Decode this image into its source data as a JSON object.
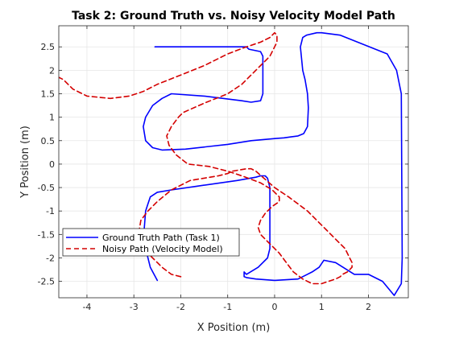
{
  "chart_data": {
    "type": "line",
    "title": "Task 2: Ground Truth vs. Noisy Velocity Model Path",
    "xlabel": "X Position (m)",
    "ylabel": "Y Position (m)",
    "xlim": [
      -4.6,
      2.85
    ],
    "ylim": [
      -2.85,
      2.95
    ],
    "xticks": [
      -4,
      -3,
      -2,
      -1,
      0,
      1,
      2
    ],
    "yticks": [
      -2.5,
      -2,
      -1.5,
      -1,
      -0.5,
      0,
      0.5,
      1,
      1.5,
      2,
      2.5
    ],
    "xtick_labels": [
      "-4",
      "-3",
      "-2",
      "-1",
      "0",
      "1",
      "2"
    ],
    "ytick_labels": [
      "-2.5",
      "-2",
      "-1.5",
      "-1",
      "-0.5",
      "0",
      "0.5",
      "1",
      "1.5",
      "2",
      "2.5"
    ],
    "grid": true,
    "legend_position": "bottom-left",
    "series": [
      {
        "name": "Ground Truth Path (Task 1)",
        "color": "#0000ff",
        "style": "solid",
        "x": [
          -2.5,
          -2.65,
          -2.75,
          -2.78,
          -2.75,
          -2.7,
          -2.65,
          -2.5,
          -2.2,
          -1.5,
          -0.8,
          -0.4,
          -0.3,
          -0.2,
          -0.15,
          -0.1,
          -0.1,
          -0.15,
          -0.35,
          -0.6,
          -0.65,
          -0.65,
          -0.6,
          -0.4,
          0.0,
          0.5,
          0.8,
          0.95,
          1.05,
          1.3,
          1.7,
          2.0,
          2.3,
          2.55,
          2.7,
          2.72,
          2.7,
          2.6,
          2.4,
          1.4,
          1.0,
          0.9,
          0.68,
          0.6,
          0.55,
          0.6,
          0.65,
          0.7,
          0.72,
          0.7,
          0.62,
          0.5,
          0.35,
          0.2,
          0.05,
          -0.5,
          -1.0,
          -1.9,
          -2.4,
          -2.6,
          -2.75,
          -2.8,
          -2.75,
          -2.6,
          -2.4,
          -2.2,
          -1.5,
          -0.7,
          -0.5,
          -0.3,
          -0.25,
          -0.25,
          -0.3,
          -0.55,
          -0.6,
          -0.6,
          -1.0,
          -1.6,
          -2.0,
          -2.4,
          -2.55
        ],
        "y": [
          -2.48,
          -2.2,
          -1.8,
          -1.4,
          -1.0,
          -0.85,
          -0.7,
          -0.6,
          -0.55,
          -0.45,
          -0.35,
          -0.28,
          -0.25,
          -0.25,
          -0.3,
          -0.5,
          -1.8,
          -2.0,
          -2.2,
          -2.35,
          -2.3,
          -2.4,
          -2.42,
          -2.45,
          -2.48,
          -2.45,
          -2.3,
          -2.2,
          -2.05,
          -2.1,
          -2.35,
          -2.35,
          -2.5,
          -2.8,
          -2.55,
          -2.0,
          1.5,
          2.0,
          2.35,
          2.75,
          2.8,
          2.8,
          2.75,
          2.7,
          2.5,
          2.0,
          1.8,
          1.5,
          1.2,
          0.8,
          0.65,
          0.6,
          0.58,
          0.56,
          0.55,
          0.5,
          0.42,
          0.32,
          0.3,
          0.35,
          0.5,
          0.8,
          1.0,
          1.25,
          1.4,
          1.5,
          1.45,
          1.35,
          1.32,
          1.35,
          1.5,
          2.3,
          2.4,
          2.45,
          2.5,
          2.5,
          2.5,
          2.5,
          2.5,
          2.5,
          2.5
        ]
      },
      {
        "name": "Noisy Path (Velocity Model)",
        "color": "#d40000",
        "style": "dashed",
        "x": [
          -2.0,
          -2.2,
          -2.4,
          -2.6,
          -2.8,
          -2.9,
          -2.85,
          -2.7,
          -2.5,
          -2.2,
          -1.8,
          -1.2,
          -1.0,
          -0.9,
          -0.6,
          -0.5,
          -0.4,
          0.0,
          0.3,
          0.5,
          0.7,
          0.9,
          1.1,
          1.3,
          1.5,
          1.6,
          1.65,
          1.65,
          1.55,
          1.45,
          1.4,
          1.3,
          1.0,
          0.8,
          0.6,
          0.4,
          0.25,
          0.1,
          -0.1,
          -0.3,
          -0.35,
          -0.3,
          -0.2,
          -0.05,
          0.1,
          0.1,
          -0.05,
          -0.3,
          -0.7,
          -1.0,
          -1.4,
          -1.85,
          -2.1,
          -2.25,
          -2.3,
          -2.2,
          -2.05,
          -1.95,
          -1.5,
          -1.0,
          -0.7,
          -0.5,
          -0.3,
          -0.1,
          0.0,
          0.05,
          0.05,
          0.0,
          -0.1,
          -0.3,
          -0.6,
          -1.0,
          -1.5,
          -2.0,
          -2.5,
          -2.8,
          -3.1,
          -3.5,
          -4.0,
          -4.3,
          -4.5,
          -4.6
        ],
        "y": [
          -2.4,
          -2.35,
          -2.2,
          -2.0,
          -1.8,
          -1.5,
          -1.2,
          -1.0,
          -0.8,
          -0.55,
          -0.35,
          -0.25,
          -0.2,
          -0.15,
          -0.1,
          -0.1,
          -0.15,
          -0.5,
          -0.7,
          -0.85,
          -1.0,
          -1.2,
          -1.4,
          -1.6,
          -1.8,
          -2.0,
          -2.1,
          -2.2,
          -2.3,
          -2.35,
          -2.4,
          -2.45,
          -2.55,
          -2.55,
          -2.45,
          -2.3,
          -2.1,
          -1.9,
          -1.7,
          -1.5,
          -1.35,
          -1.2,
          -1.05,
          -0.9,
          -0.8,
          -0.7,
          -0.55,
          -0.4,
          -0.25,
          -0.15,
          -0.05,
          0.0,
          0.2,
          0.4,
          0.6,
          0.8,
          1.0,
          1.1,
          1.3,
          1.5,
          1.7,
          1.9,
          2.1,
          2.3,
          2.5,
          2.6,
          2.75,
          2.8,
          2.7,
          2.6,
          2.5,
          2.35,
          2.1,
          1.9,
          1.7,
          1.55,
          1.45,
          1.4,
          1.45,
          1.6,
          1.8,
          1.85
        ]
      }
    ]
  }
}
